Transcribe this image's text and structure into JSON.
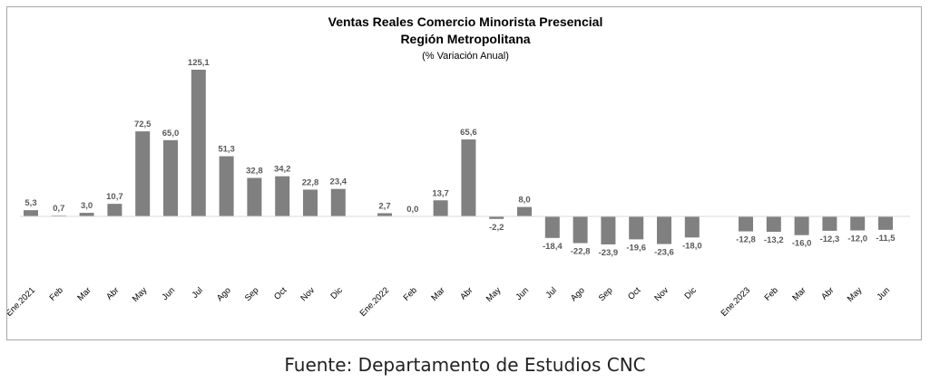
{
  "chart_data": {
    "type": "bar",
    "title": "Ventas Reales Comercio Minorista Presencial",
    "subtitle_line2": "Región Metropolitana",
    "subtitle_line3": "(% Variación Anual)",
    "categories": [
      "Ene.2021",
      "Feb",
      "Mar",
      "Abr",
      "May",
      "Jun",
      "Jul",
      "Ago",
      "Sep",
      "Oct",
      "Nov",
      "Dic",
      "Ene.2022",
      "Feb",
      "Mar",
      "Abr",
      "May",
      "Jun",
      "Jul",
      "Ago",
      "Sep",
      "Oct",
      "Nov",
      "Dic",
      "Ene.2023",
      "Feb",
      "Mar",
      "Abr",
      "May",
      "Jun"
    ],
    "values": [
      5.3,
      0.7,
      3.0,
      10.7,
      72.5,
      65.0,
      125.1,
      51.3,
      32.8,
      34.2,
      22.8,
      23.4,
      2.7,
      0.0,
      13.7,
      65.6,
      -2.2,
      8.0,
      -18.4,
      -22.8,
      -23.9,
      -19.6,
      -23.6,
      -18.0,
      -12.8,
      -13.2,
      -16.0,
      -12.3,
      -12.0,
      -11.5
    ],
    "value_labels": [
      "5,3",
      "0,7",
      "3,0",
      "10,7",
      "72,5",
      "65,0",
      "125,1",
      "51,3",
      "32,8",
      "34,2",
      "22,8",
      "23,4",
      "2,7",
      "0,0",
      "13,7",
      "65,6",
      "-2,2",
      "8,0",
      "-18,4",
      "-22,8",
      "-23,9",
      "-19,6",
      "-23,6",
      "-18,0",
      "-12,8",
      "-13,2",
      "-16,0",
      "-12,3",
      "-12,0",
      "-11,5"
    ],
    "ylim": [
      -30,
      125.1
    ],
    "grid": false,
    "bar_color": "#808080"
  },
  "source": "Fuente: Departamento de Estudios CNC"
}
